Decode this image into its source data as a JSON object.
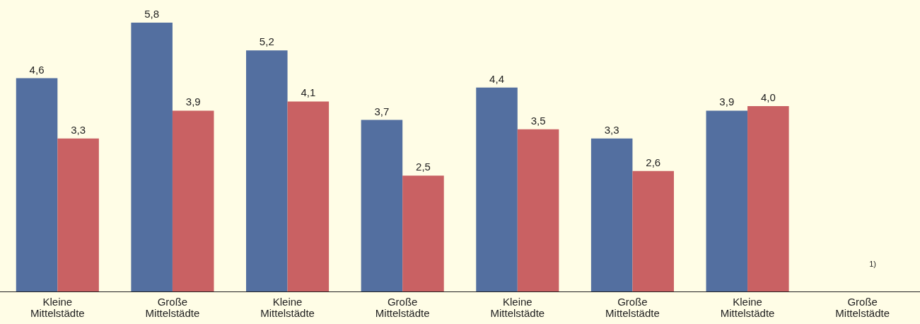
{
  "chart_data": {
    "type": "bar",
    "categories": [
      "Kleine Mittelstädte",
      "Große Mittelstädte",
      "Kleine Mittelstädte",
      "Große Mittelstädte",
      "Kleine Mittelstädte",
      "Große Mittelstädte",
      "Kleine Mittelstädte",
      "Große Mittelstädte"
    ],
    "series": [
      {
        "color": "#536fa0",
        "values": [
          4.6,
          5.8,
          5.2,
          3.7,
          4.4,
          3.3,
          3.9,
          null
        ],
        "value_labels": [
          "4,6",
          "5,8",
          "5,2",
          "3,7",
          "4,4",
          "3,3",
          "3,9",
          null
        ]
      },
      {
        "color": "#c96163",
        "values": [
          3.3,
          3.9,
          4.1,
          2.5,
          3.5,
          2.6,
          4.0,
          null
        ],
        "value_labels": [
          "3,3",
          "3,9",
          "4,1",
          "2,5",
          "3,5",
          "2,6",
          "4,0",
          null
        ]
      }
    ],
    "annotations": [
      "1)"
    ]
  }
}
